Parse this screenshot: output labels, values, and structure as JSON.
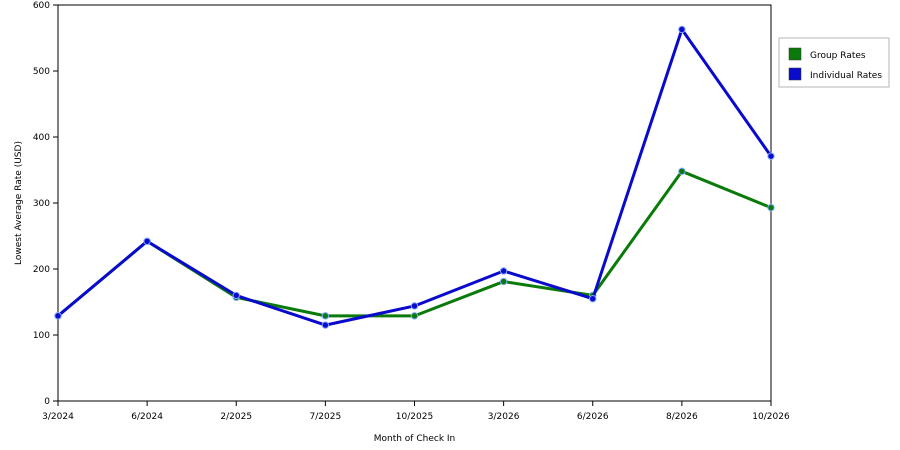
{
  "chart_data": {
    "type": "line",
    "title": "",
    "xlabel": "Month of Check In",
    "ylabel": "Lowest Average Rate (USD)",
    "categories": [
      "3/2024",
      "6/2024",
      "2/2025",
      "7/2025",
      "10/2025",
      "3/2026",
      "6/2026",
      "8/2026",
      "10/2026"
    ],
    "ylim": [
      0,
      600
    ],
    "yticks": [
      0,
      100,
      200,
      300,
      400,
      500,
      600
    ],
    "grid": "horizontal-dashed",
    "legend_position": "right",
    "series": [
      {
        "name": "Group Rates",
        "color": "#0a7a0a",
        "values": [
          129,
          242,
          157,
          129,
          129,
          181,
          160,
          348,
          293
        ]
      },
      {
        "name": "Individual Rates",
        "color": "#0a0acc",
        "values": [
          129,
          242,
          160,
          115,
          144,
          197,
          155,
          563,
          371
        ]
      }
    ]
  }
}
